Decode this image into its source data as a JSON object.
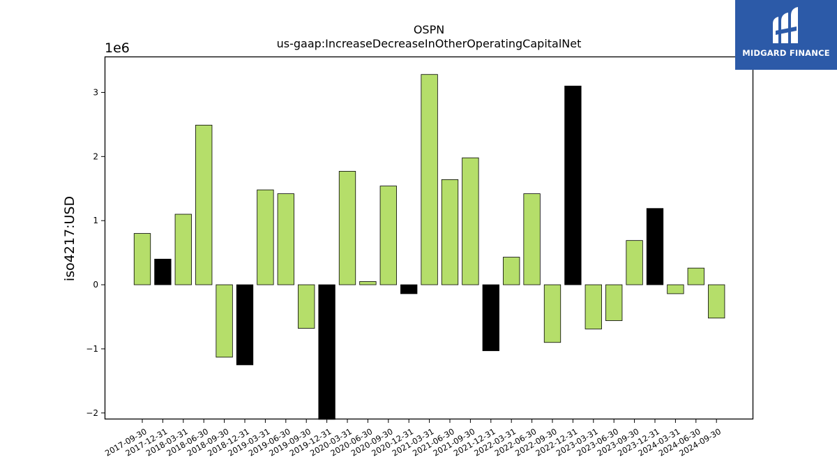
{
  "logo": {
    "text": "MIDGARD FINANCE"
  },
  "chart_data": {
    "type": "bar",
    "title": "OSPN",
    "subtitle": "us-gaap:IncreaseDecreaseInOtherOperatingCapitalNet",
    "ylabel": "iso4217:USD",
    "xlabel": "",
    "y_multiplier_label": "1e6",
    "ylim": [
      -2100000,
      3560000
    ],
    "yticks": [
      -2,
      -1,
      0,
      1,
      2,
      3
    ],
    "grid": false,
    "colors": {
      "default": "#b5de6a",
      "highlight": "#000000"
    },
    "categories": [
      "2017-09-30",
      "2017-12-31",
      "2018-03-31",
      "2018-06-30",
      "2018-09-30",
      "2018-12-31",
      "2019-03-31",
      "2019-06-30",
      "2019-09-30",
      "2019-12-31",
      "2020-03-31",
      "2020-06-30",
      "2020-09-30",
      "2020-12-31",
      "2021-03-31",
      "2021-06-30",
      "2021-09-30",
      "2021-12-31",
      "2022-03-31",
      "2022-06-30",
      "2022-09-30",
      "2022-12-31",
      "2023-03-31",
      "2023-06-30",
      "2023-09-30",
      "2023-12-31",
      "2024-03-31",
      "2024-06-30",
      "2024-09-30"
    ],
    "values": [
      800000,
      400000,
      1100000,
      2490000,
      -1130000,
      -1250000,
      1480000,
      1420000,
      -680000,
      -2100000,
      1770000,
      50000,
      1540000,
      -140000,
      3280000,
      1640000,
      1980000,
      -1030000,
      430000,
      1420000,
      -900000,
      3100000,
      -690000,
      -560000,
      690000,
      1190000,
      -140000,
      260000,
      -520000
    ],
    "highlighted": [
      false,
      true,
      false,
      false,
      false,
      true,
      false,
      false,
      false,
      true,
      false,
      false,
      false,
      true,
      false,
      false,
      false,
      true,
      false,
      false,
      false,
      true,
      false,
      false,
      false,
      true,
      false,
      false,
      false
    ]
  }
}
